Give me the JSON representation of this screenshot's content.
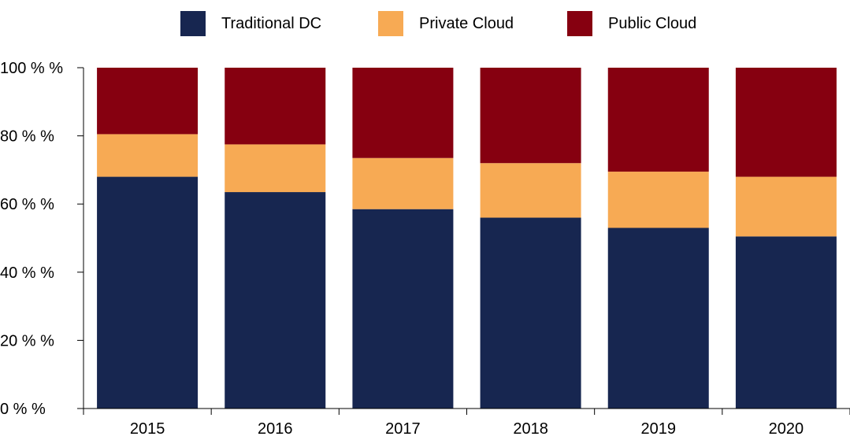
{
  "chart_data": {
    "type": "bar",
    "stacked": true,
    "categories": [
      "2015",
      "2016",
      "2017",
      "2018",
      "2019",
      "2020"
    ],
    "series": [
      {
        "name": "Traditional DC",
        "color": "#172650",
        "values": [
          68,
          63.5,
          58.5,
          56,
          53,
          50.5
        ]
      },
      {
        "name": "Private Cloud",
        "color": "#f7aa54",
        "values": [
          12.5,
          14,
          15,
          16,
          16.5,
          17.5
        ]
      },
      {
        "name": "Public Cloud",
        "color": "#860010",
        "values": [
          19.5,
          22.5,
          26.5,
          28,
          30.5,
          32
        ]
      }
    ],
    "ylim": [
      0,
      100
    ],
    "yticks": [
      0,
      20,
      40,
      60,
      80,
      100
    ],
    "ytick_labels": [
      "0 % %",
      "20 % %",
      "40 % %",
      "60 % %",
      "80 % %",
      "100 % %"
    ],
    "grid": false,
    "legend_position": "top"
  }
}
